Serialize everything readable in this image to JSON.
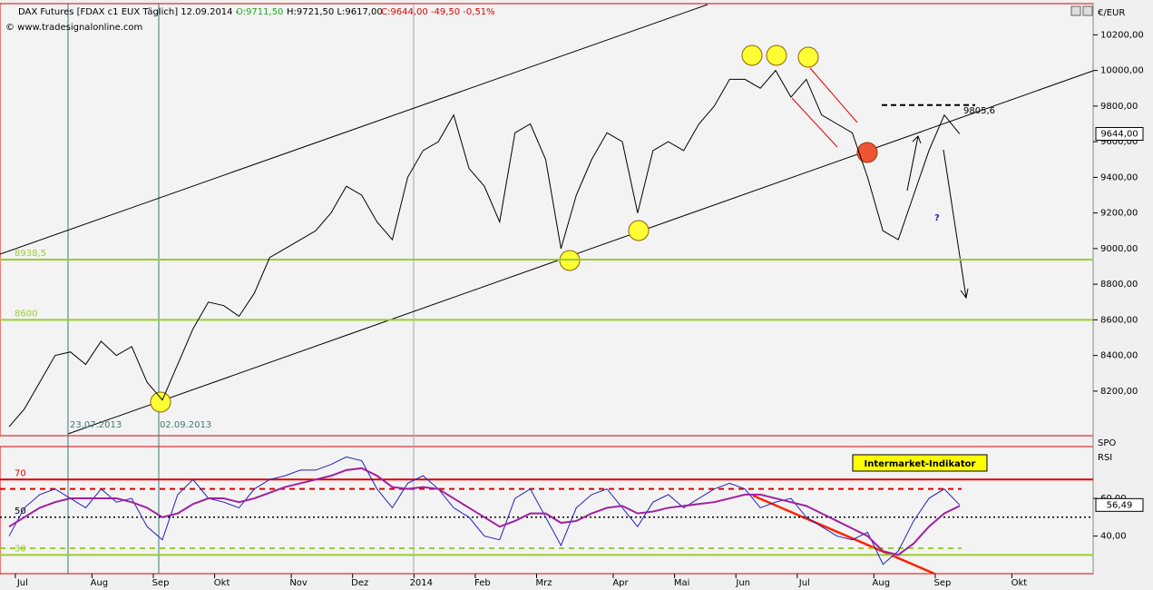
{
  "header": {
    "title": "DAX Futures [FDAX c1 EUX  Täglich] 12.09.2014 -",
    "open": "O:9711,50",
    "high_low": "H:9721,50 L:9617,00",
    "close": "C:9644,00 -49,50 -0,51%",
    "source": "© www.tradesignalonline.com"
  },
  "chart_data": [
    {
      "type": "line",
      "unit": "€/EUR",
      "series": [
        {
          "color": "#000000",
          "values": [
            8000,
            8100,
            8250,
            8400,
            8420,
            8350,
            8480,
            8400,
            8450,
            8250,
            8150,
            8350,
            8550,
            8700,
            8680,
            8620,
            8750,
            8950,
            9000,
            9050,
            9100,
            9200,
            9350,
            9300,
            9150,
            9050,
            9400,
            9550,
            9600,
            9750,
            9450,
            9350,
            9150,
            9650,
            9700,
            9500,
            9000,
            9300,
            9500,
            9650,
            9600,
            9200,
            9550,
            9600,
            9550,
            9700,
            9800,
            9950,
            9950,
            9900,
            10000,
            9850,
            9950,
            9750,
            9700,
            9650,
            9400,
            9100,
            9050,
            9300,
            9550,
            9750,
            9644,
            null,
            null,
            null,
            null,
            null,
            null,
            null
          ]
        }
      ],
      "ylim": [
        7960,
        10370
      ],
      "yticks": [
        {
          "value": 8200,
          "label": "8200,00"
        },
        {
          "value": 8400,
          "label": "8400,00"
        },
        {
          "value": 8600,
          "label": "8600,00"
        },
        {
          "value": 8800,
          "label": "8800,00"
        },
        {
          "value": 9000,
          "label": "9000,00"
        },
        {
          "value": 9200,
          "label": "9200,00"
        },
        {
          "value": 9400,
          "label": "9400,00"
        },
        {
          "value": 9600,
          "label": "9600,00"
        },
        {
          "value": 9800,
          "label": "9800,00"
        },
        {
          "value": 10000,
          "label": "10000,00"
        },
        {
          "value": 10200,
          "label": "10200,00"
        }
      ],
      "levels": [
        {
          "value": 8938.5,
          "label": "8938,5",
          "color": "#9acd32"
        },
        {
          "value": 8600,
          "label": "8600",
          "color": "#9acd32"
        }
      ],
      "resistance": {
        "value": 9805.6,
        "label": "9805,6"
      },
      "last_label": {
        "value": 9644,
        "label": "9644,00"
      },
      "annotations": [
        "23.07.2013",
        "02.09.2013",
        "?"
      ]
    },
    {
      "type": "line",
      "label": "RSI",
      "indicator": "SPO",
      "title": "Intermarket-Indikator",
      "categories": [
        null,
        "Jul",
        null,
        null,
        null,
        null,
        "Aug",
        null,
        null,
        null,
        "Sep",
        null,
        null,
        null,
        "Okt",
        null,
        null,
        null,
        null,
        "Nov",
        null,
        null,
        null,
        "Dez",
        null,
        null,
        null,
        "2014",
        null,
        null,
        null,
        "Feb",
        null,
        null,
        null,
        "Mrz",
        null,
        null,
        null,
        null,
        "Apr",
        null,
        null,
        null,
        "Mai",
        null,
        null,
        null,
        "Jun",
        null,
        null,
        null,
        "Jul",
        null,
        null,
        null,
        null,
        "Aug",
        null,
        null,
        null,
        "Sep",
        null,
        null,
        null,
        null,
        "Okt",
        null,
        null,
        null
      ],
      "series": [
        {
          "color": "#2020c0",
          "values": [
            40,
            55,
            62,
            65,
            60,
            55,
            65,
            58,
            60,
            45,
            38,
            62,
            70,
            60,
            58,
            55,
            65,
            70,
            72,
            75,
            75,
            78,
            82,
            80,
            65,
            55,
            68,
            72,
            65,
            55,
            50,
            40,
            38,
            60,
            65,
            50,
            35,
            55,
            62,
            65,
            55,
            45,
            58,
            62,
            55,
            60,
            65,
            68,
            65,
            55,
            58,
            60,
            50,
            45,
            40,
            38,
            42,
            25,
            32,
            48,
            60,
            65,
            56.49,
            null,
            null,
            null,
            null,
            null,
            null,
            null
          ]
        },
        {
          "color": "#a020a0",
          "values": [
            45,
            50,
            55,
            58,
            60,
            60,
            60,
            60,
            58,
            55,
            50,
            52,
            57,
            60,
            60,
            58,
            60,
            63,
            66,
            68,
            70,
            72,
            75,
            76,
            72,
            66,
            65,
            66,
            65,
            60,
            55,
            50,
            45,
            48,
            52,
            52,
            47,
            48,
            52,
            55,
            56,
            52,
            53,
            55,
            56,
            57,
            58,
            60,
            62,
            62,
            60,
            58,
            56,
            52,
            48,
            44,
            40,
            32,
            30,
            36,
            45,
            52,
            56,
            null,
            null,
            null,
            null,
            null,
            null,
            null
          ]
        }
      ],
      "ylim": [
        21,
        87
      ],
      "yticks": [
        {
          "value": 40,
          "label": "40,00"
        },
        {
          "value": 60,
          "label": "60,00"
        }
      ],
      "levels": [
        {
          "value": 70,
          "label": "70",
          "color": "#e00000"
        },
        {
          "value": 50,
          "label": "50",
          "color": "#000000"
        },
        {
          "value": 30,
          "label": "30",
          "color": "#9acd32"
        }
      ],
      "dashed_levels": [
        {
          "value": 65,
          "color": "#e00000"
        },
        {
          "value": 33.5,
          "color": "#9acd32"
        }
      ],
      "last_label": {
        "value": 56.49,
        "label": "56,49"
      }
    }
  ]
}
